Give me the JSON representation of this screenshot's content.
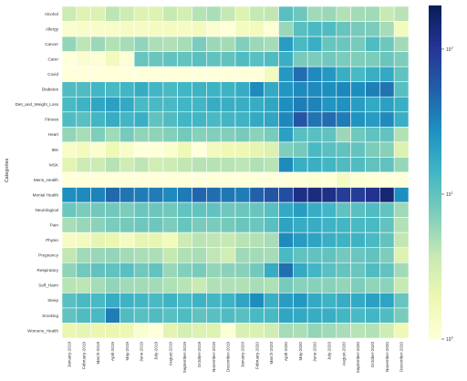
{
  "chart_data": {
    "type": "heatmap",
    "title": "",
    "xlabel": "",
    "ylabel": "Categories",
    "rows": [
      "Alcohol",
      "Allergy",
      "Cancer",
      "Carer",
      "Covid",
      "Diabetes",
      "Diet_and_Weight_Loss",
      "Fitness",
      "Heart",
      "IBS",
      "MSK",
      "Mens_Health",
      "Mental Health",
      "Neurological",
      "Pain",
      "Physio",
      "Pregnancy",
      "Respiratory",
      "Self_Harm",
      "Sleep",
      "Smoking",
      "Womens_Health"
    ],
    "columns": [
      "January-2019",
      "February-2019",
      "March-2019",
      "April-2019",
      "May-2019",
      "June-2019",
      "July-2019",
      "August-2019",
      "September-2019",
      "October-2019",
      "November-2019",
      "December-2019",
      "January-2020",
      "February-2020",
      "March-2020",
      "April-2020",
      "May-2020",
      "June-2020",
      "July-2020",
      "August-2020",
      "September-2020",
      "October-2020",
      "November-2020",
      "December-2020"
    ],
    "scale": "log",
    "colormap": "YlGnBu",
    "color_range": [
      1,
      200
    ],
    "colorbar_ticks": [
      {
        "exp": "0",
        "value": 1
      },
      {
        "exp": "1",
        "value": 10
      },
      {
        "exp": "2",
        "value": 100
      }
    ],
    "values": [
      [
        3.4,
        2.4,
        2.6,
        4.1,
        3.4,
        2.5,
        2.5,
        3.7,
        3,
        4.4,
        4.9,
        3.8,
        2.5,
        3.8,
        3.9,
        11,
        8.7,
        5.4,
        5.7,
        4.5,
        5.2,
        5.4,
        3.7,
        4.3
      ],
      [
        1.2,
        1.3,
        1.3,
        1.3,
        1.4,
        1.4,
        1.5,
        1.5,
        1.4,
        1.6,
        1.2,
        1.0,
        1.5,
        1.6,
        1.1,
        5.7,
        11,
        13,
        12,
        9.4,
        7.9,
        7.6,
        5.1,
        1.6
      ],
      [
        6,
        4.1,
        5.6,
        4.5,
        5.1,
        6.2,
        4.8,
        4.6,
        5.1,
        7.6,
        5.6,
        5.2,
        7.2,
        5.6,
        5.1,
        22,
        13,
        16,
        9.3,
        8.8,
        7.9,
        12,
        8.7,
        5.3
      ],
      [
        1.0,
        1.2,
        1.1,
        1.6,
        1.1,
        9.4,
        9.2,
        10,
        9.7,
        11,
        10,
        9.9,
        12,
        11,
        12,
        16,
        7.9,
        7.6,
        8.4,
        7.6,
        7.3,
        7.5,
        9.1,
        7.4
      ],
      [
        1.0,
        1.0,
        1.0,
        1.0,
        1.0,
        1.0,
        1.0,
        1.0,
        1.0,
        1.0,
        1.0,
        1.0,
        1.0,
        1.0,
        1.6,
        24,
        44,
        30,
        24,
        16,
        13,
        16,
        18,
        10
      ],
      [
        12,
        12,
        14,
        13,
        14,
        17,
        14,
        13,
        14,
        15,
        15,
        15,
        17,
        30,
        18,
        25,
        30,
        30,
        28,
        31,
        28,
        34,
        40,
        11
      ],
      [
        13,
        15,
        19,
        21,
        18,
        13,
        13,
        13,
        14,
        14,
        17,
        16,
        16,
        17,
        19,
        28,
        35,
        33,
        25,
        27,
        22,
        18,
        21,
        16
      ],
      [
        12,
        11,
        14,
        17,
        14,
        16,
        10,
        12,
        14,
        14,
        13,
        14,
        15,
        18,
        19,
        31,
        61,
        40,
        44,
        36,
        26,
        23,
        30,
        16
      ],
      [
        6.1,
        5,
        7.3,
        5.4,
        7.9,
        6.2,
        6.3,
        7,
        8.2,
        6.8,
        7.2,
        7.1,
        7.9,
        6.5,
        7.8,
        21,
        11,
        11,
        10,
        5.6,
        8.5,
        10,
        9.6,
        4.5
      ],
      [
        1.3,
        1.6,
        1.2,
        1.8,
        1.3,
        1.0,
        1.0,
        1.2,
        1.8,
        1.0,
        1.6,
        1.8,
        1.9,
        2.2,
        2.6,
        7.3,
        8,
        13,
        11,
        10,
        9.6,
        7.5,
        6.8,
        2.6
      ],
      [
        2.3,
        3.4,
        3.4,
        4.4,
        3.3,
        4.1,
        3.2,
        3.4,
        3.9,
        4.4,
        4.4,
        4.3,
        4.1,
        4.7,
        4.3,
        30,
        16,
        16,
        14,
        12,
        12,
        10,
        10,
        5.9
      ],
      [
        1.0,
        1.0,
        1.0,
        1.0,
        1.0,
        1.0,
        1.0,
        1.0,
        1.0,
        1.0,
        1.0,
        1.0,
        1.0,
        1.0,
        1.0,
        1.0,
        1.0,
        1.1,
        1.0,
        1.5,
        1.1,
        1.0,
        1.0,
        1.0
      ],
      [
        28,
        30,
        33,
        47,
        40,
        36,
        36,
        30,
        37,
        48,
        43,
        38,
        36,
        51,
        61,
        70,
        120,
        130,
        120,
        90,
        90,
        110,
        150,
        28
      ],
      [
        9,
        7.6,
        8.4,
        8.4,
        7.5,
        9,
        8.8,
        8.5,
        9.8,
        9.8,
        9.9,
        8.6,
        9,
        9.1,
        11,
        18,
        22,
        17,
        14,
        10,
        11,
        12,
        9.8,
        5.5
      ],
      [
        5,
        5.8,
        6.5,
        7.6,
        8,
        8.6,
        8.7,
        7.4,
        9.3,
        7.7,
        7.7,
        8,
        9.1,
        8.8,
        11,
        20,
        17,
        17,
        15,
        14,
        13,
        13,
        10,
        4.5
      ],
      [
        1.4,
        1.6,
        2.2,
        2,
        1.5,
        2.2,
        2.1,
        1.6,
        3.4,
        4.2,
        4,
        3.8,
        4.3,
        4.5,
        5,
        30,
        23,
        20,
        16,
        15,
        15,
        13,
        10,
        3.9
      ],
      [
        3.9,
        5.4,
        5.7,
        6,
        5.2,
        4.9,
        4.8,
        3.8,
        4.6,
        5,
        4,
        3.2,
        5.5,
        5.2,
        5.1,
        13,
        10,
        9.9,
        10,
        8.3,
        9.1,
        9.9,
        7.4,
        2.5
      ],
      [
        6.3,
        8.5,
        10,
        10,
        11,
        8.5,
        9.8,
        5.7,
        7,
        7.8,
        6.1,
        6.5,
        6.8,
        8.2,
        17,
        42,
        18,
        14,
        11,
        9.5,
        9.2,
        12,
        10,
        5.3
      ],
      [
        4.3,
        4.1,
        5.1,
        6.2,
        5.4,
        5.2,
        5.2,
        4.7,
        4.3,
        3.6,
        4.6,
        4.6,
        4.6,
        5,
        4.7,
        7.9,
        6.7,
        6.8,
        6.6,
        6.1,
        7.3,
        6.2,
        6.5,
        3.7
      ],
      [
        11,
        13,
        13,
        17,
        15,
        14,
        13,
        15,
        13,
        15,
        14,
        15,
        20,
        29,
        16,
        22,
        24,
        18,
        15,
        17,
        18,
        21,
        20,
        9.4
      ],
      [
        10,
        12,
        13,
        36,
        12,
        11,
        12,
        11,
        12,
        10,
        11,
        12,
        11,
        13,
        13,
        19,
        18,
        17,
        16,
        14,
        13,
        14,
        12,
        7.8
      ],
      [
        2,
        2.2,
        2,
        2,
        1.9,
        1.2,
        1.0,
        2.3,
        3,
        2.6,
        2.5,
        1.1,
        2.8,
        2.7,
        3.2,
        5.1,
        4.9,
        6.1,
        5.4,
        5,
        4.3,
        4.5,
        3.3,
        1.8
      ]
    ]
  }
}
